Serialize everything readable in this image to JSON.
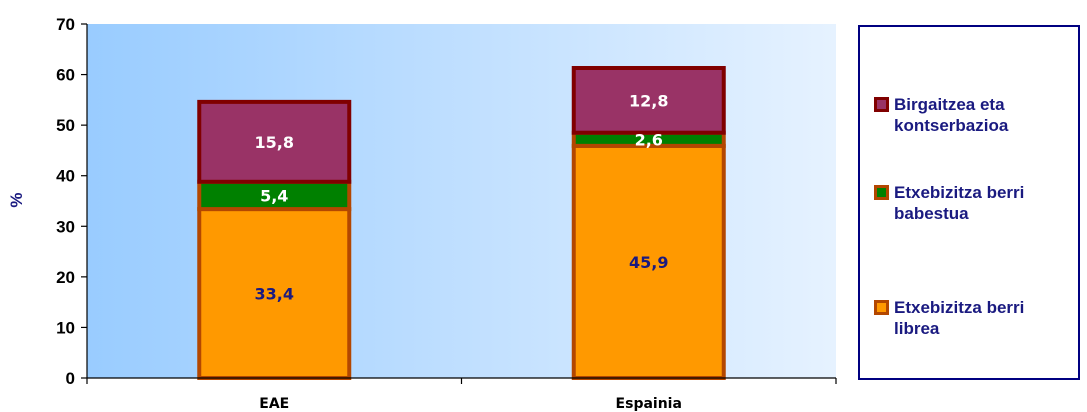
{
  "chart_data": {
    "type": "bar",
    "stacked": true,
    "categories": [
      "EAE",
      "Espainia"
    ],
    "series": [
      {
        "name": "Etxebizitza berri librea",
        "values": [
          33.4,
          45.9
        ],
        "color": "#ff9900",
        "border": "#b34700"
      },
      {
        "name": "Etxebizitza berri babestua",
        "values": [
          5.4,
          2.6
        ],
        "color": "#008000",
        "border": "#b34700"
      },
      {
        "name": "Birgaitzea eta kontserbazioa",
        "values": [
          15.8,
          12.8
        ],
        "color": "#993366",
        "border": "#800000"
      }
    ],
    "data_labels": [
      [
        "33,4",
        "45,9"
      ],
      [
        "5,4",
        "2,6"
      ],
      [
        "15,8",
        "12,8"
      ]
    ],
    "data_label_colors": [
      "#1a1a80",
      "#ffffff",
      "#ffffff"
    ],
    "ylabel": "%",
    "ylim": [
      0,
      70
    ],
    "yticks": [
      "0",
      "10",
      "20",
      "30",
      "40",
      "50",
      "60",
      "70"
    ],
    "grid": false,
    "legend": {
      "position": "right",
      "items": [
        {
          "label": "Birgaitzea eta kontserbazioa",
          "color": "#993366",
          "border": "#800000"
        },
        {
          "label": "Etxebizitza berri babestua",
          "color": "#008000",
          "border": "#b34700"
        },
        {
          "label": "Etxebizitza berri librea",
          "color": "#ff9900",
          "border": "#b34700"
        }
      ]
    }
  }
}
